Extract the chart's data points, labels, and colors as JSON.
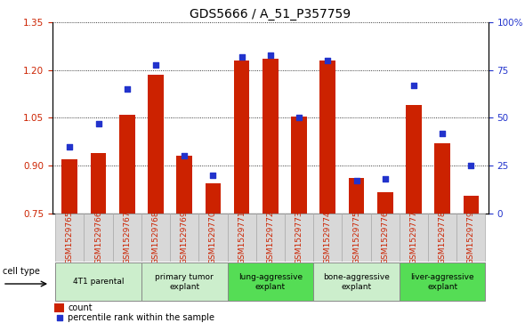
{
  "title": "GDS5666 / A_51_P357759",
  "x_labels": [
    "GSM1529765",
    "GSM1529766",
    "GSM1529767",
    "GSM1529768",
    "GSM1529769",
    "GSM1529770",
    "GSM1529771",
    "GSM1529772",
    "GSM1529773",
    "GSM1529774",
    "GSM1529775",
    "GSM1529776",
    "GSM1529777",
    "GSM1529778",
    "GSM1529779"
  ],
  "bar_values": [
    0.92,
    0.94,
    1.06,
    1.185,
    0.93,
    0.845,
    1.23,
    1.235,
    1.055,
    1.23,
    0.86,
    0.815,
    1.09,
    0.97,
    0.805
  ],
  "percentile_values": [
    35,
    47,
    65,
    78,
    30,
    20,
    82,
    83,
    50,
    80,
    17,
    18,
    67,
    42,
    25
  ],
  "ylim_left": [
    0.75,
    1.35
  ],
  "ylim_right": [
    0,
    100
  ],
  "yticks_left": [
    0.75,
    0.9,
    1.05,
    1.2,
    1.35
  ],
  "yticks_right": [
    0,
    25,
    50,
    75,
    100
  ],
  "bar_color": "#cc2200",
  "dot_color": "#2233cc",
  "cell_type_groups": [
    {
      "label": "4T1 parental",
      "start": 0,
      "end": 2,
      "color": "#cceecc"
    },
    {
      "label": "primary tumor\nexplant",
      "start": 3,
      "end": 5,
      "color": "#cceecc"
    },
    {
      "label": "lung-aggressive\nexplant",
      "start": 6,
      "end": 8,
      "color": "#55dd55"
    },
    {
      "label": "bone-aggressive\nexplant",
      "start": 9,
      "end": 11,
      "color": "#cceecc"
    },
    {
      "label": "liver-aggressive\nexplant",
      "start": 12,
      "end": 14,
      "color": "#55dd55"
    }
  ],
  "cell_type_label": "cell type",
  "legend_count_label": "count",
  "legend_pct_label": "percentile rank within the sample",
  "title_fontsize": 10,
  "tick_fontsize": 7.5,
  "xtick_fontsize": 6.5
}
